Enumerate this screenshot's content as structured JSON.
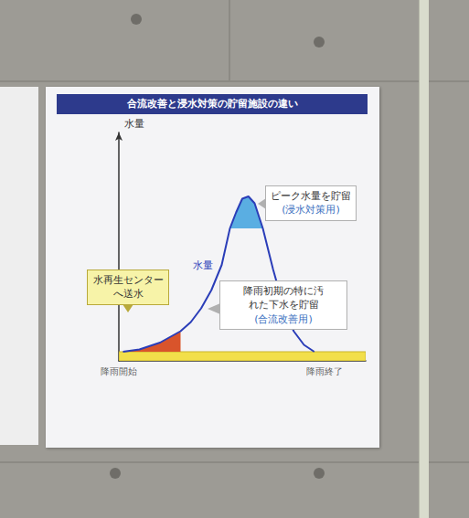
{
  "chart_data": {
    "type": "line",
    "title": "合流改善と浸水対策の貯留施設の違い",
    "y_label": "水量",
    "tick_labels": false,
    "grid": false,
    "xlim": [
      0,
      120
    ],
    "ylim": [
      0,
      100
    ],
    "x": [
      2,
      10,
      20,
      30,
      35,
      40,
      45,
      50,
      54,
      57,
      60,
      63,
      66,
      70,
      75,
      80,
      85,
      90,
      95
    ],
    "series": [
      {
        "name": "水量",
        "color": "#2a3db8",
        "values": [
          4,
          5,
          8,
          13,
          17,
          23,
          31,
          42,
          58,
          65,
          71,
          72,
          69,
          58,
          40,
          24,
          13,
          7,
          4
        ]
      }
    ],
    "x_annotations": [
      {
        "text": "降雨開始",
        "x": 0
      },
      {
        "text": "降雨終了",
        "x": 100
      }
    ],
    "baseflow": {
      "value": 4,
      "color": "#f2df4a",
      "label": "水再生センターへ送水"
    },
    "first_flush": {
      "x_range": [
        2,
        30
      ],
      "color": "#d9542b",
      "label": "降雨初期の特に汚れた下水を貯留",
      "note": "(合流改善用)"
    },
    "peak_storage": {
      "threshold": 58,
      "color": "#5aaee2",
      "label": "ピーク水量を貯留",
      "note": "(浸水対策用)"
    }
  }
}
